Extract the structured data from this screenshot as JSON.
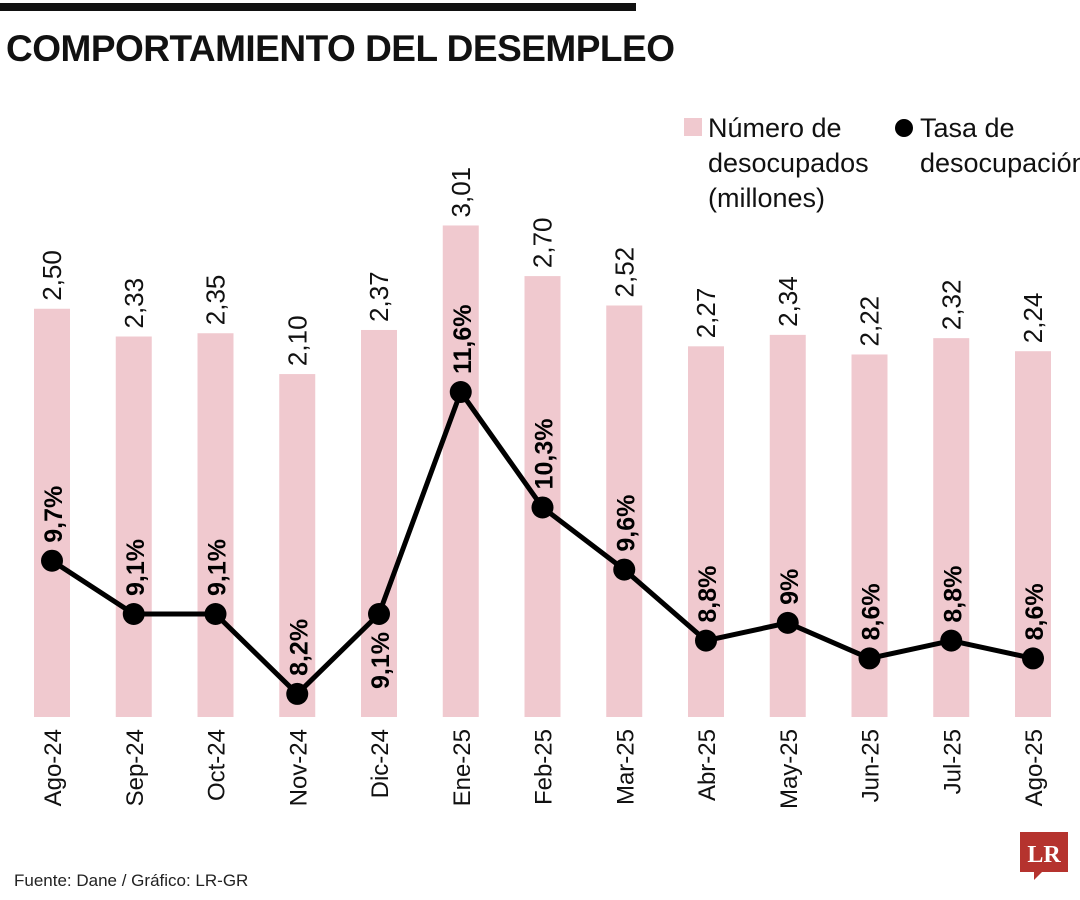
{
  "title": "COMPORTAMIENTO DEL DESEMPLEO",
  "source": "Fuente: Dane / Gráfico: LR-GR",
  "logo": {
    "text": "LR",
    "color": "#b5332e"
  },
  "legend": {
    "bar_lines": [
      "Número de",
      "desocupados",
      "(millones)"
    ],
    "line_lines": [
      "Tasa de",
      "desocupación"
    ]
  },
  "chart_data": {
    "type": "bar",
    "categories": [
      "Ago-24",
      "Sep-24",
      "Oct-24",
      "Nov-24",
      "Dic-24",
      "Ene-25",
      "Feb-25",
      "Mar-25",
      "Abr-25",
      "May-25",
      "Jun-25",
      "Jul-25",
      "Ago-25"
    ],
    "series": [
      {
        "name": "Número de desocupados (millones)",
        "type": "bar",
        "color": "#f0c9cf",
        "values": [
          2.5,
          2.33,
          2.35,
          2.1,
          2.37,
          3.01,
          2.7,
          2.52,
          2.27,
          2.34,
          2.22,
          2.32,
          2.24
        ],
        "labels": [
          "2,50",
          "2,33",
          "2,35",
          "2,10",
          "2,37",
          "3,01",
          "2,70",
          "2,52",
          "2,27",
          "2,34",
          "2,22",
          "2,32",
          "2,24"
        ]
      },
      {
        "name": "Tasa de desocupación",
        "type": "line",
        "color": "#000000",
        "values": [
          9.7,
          9.1,
          9.1,
          8.2,
          9.1,
          11.6,
          10.3,
          9.6,
          8.8,
          9.0,
          8.6,
          8.8,
          8.6
        ],
        "labels": [
          "9,7%",
          "9,1%",
          "9,1%",
          "8,2%",
          "9,1%",
          "11,6%",
          "10,3%",
          "9,6%",
          "8,8%",
          "9%",
          "8,6%",
          "8,8%",
          "8,6%"
        ]
      }
    ],
    "legend_position": "top-right",
    "grid": false
  }
}
